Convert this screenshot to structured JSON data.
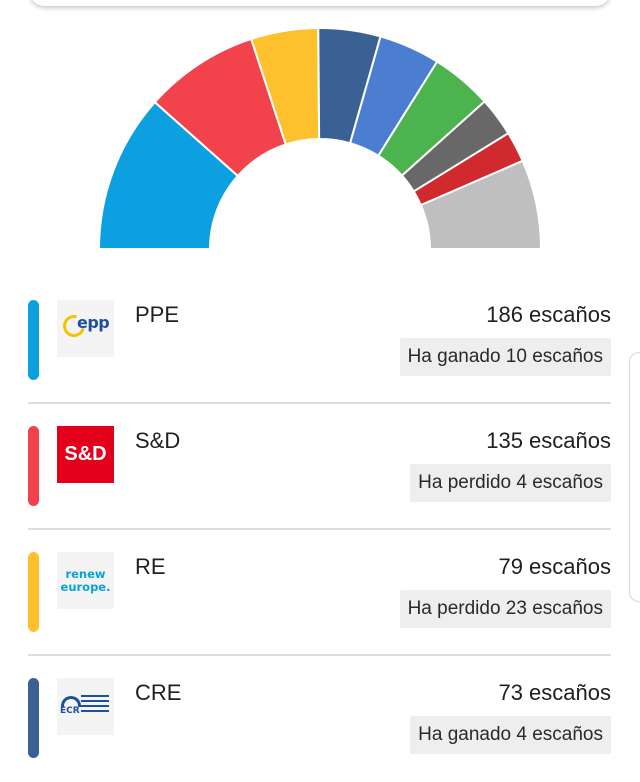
{
  "chart_data": {
    "type": "pie",
    "subtype": "parliament-hemicycle",
    "slices": [
      {
        "party": "PPE",
        "seats": 186,
        "color": "#0da0e0"
      },
      {
        "party": "S&D",
        "seats": 135,
        "color": "#f2434c"
      },
      {
        "party": "RE",
        "seats": 79,
        "color": "#fdc12d"
      },
      {
        "party": "CRE",
        "seats": 73,
        "color": "#3a6094"
      },
      {
        "seats": 72,
        "color": "#4b7ed0"
      },
      {
        "seats": 72,
        "color": "#4cb34f"
      },
      {
        "seats": 46,
        "color": "#686868"
      },
      {
        "seats": 36,
        "color": "#d02a2e"
      },
      {
        "seats": 105,
        "color": "#bfbfbf"
      }
    ]
  },
  "parties": [
    {
      "name": "PPE",
      "seats_text": "186 escaños",
      "change_text": "Ha ganado 10 escaños",
      "color": "#0da0e0",
      "logo": "epp-logo",
      "logo_text": "epp"
    },
    {
      "name": "S&D",
      "seats_text": "135 escaños",
      "change_text": "Ha perdido 4 escaños",
      "color": "#f2434c",
      "logo": "sd-logo",
      "logo_text": "S&D"
    },
    {
      "name": "RE",
      "seats_text": "79 escaños",
      "change_text": "Ha perdido 23 escaños",
      "color": "#fdc12d",
      "logo": "renew-europe-logo",
      "logo_text": "renew europe."
    },
    {
      "name": "CRE",
      "seats_text": "73 escaños",
      "change_text": "Ha ganado 4 escaños",
      "color": "#3a6094",
      "logo": "ecr-logo",
      "logo_text": "ECR"
    }
  ]
}
